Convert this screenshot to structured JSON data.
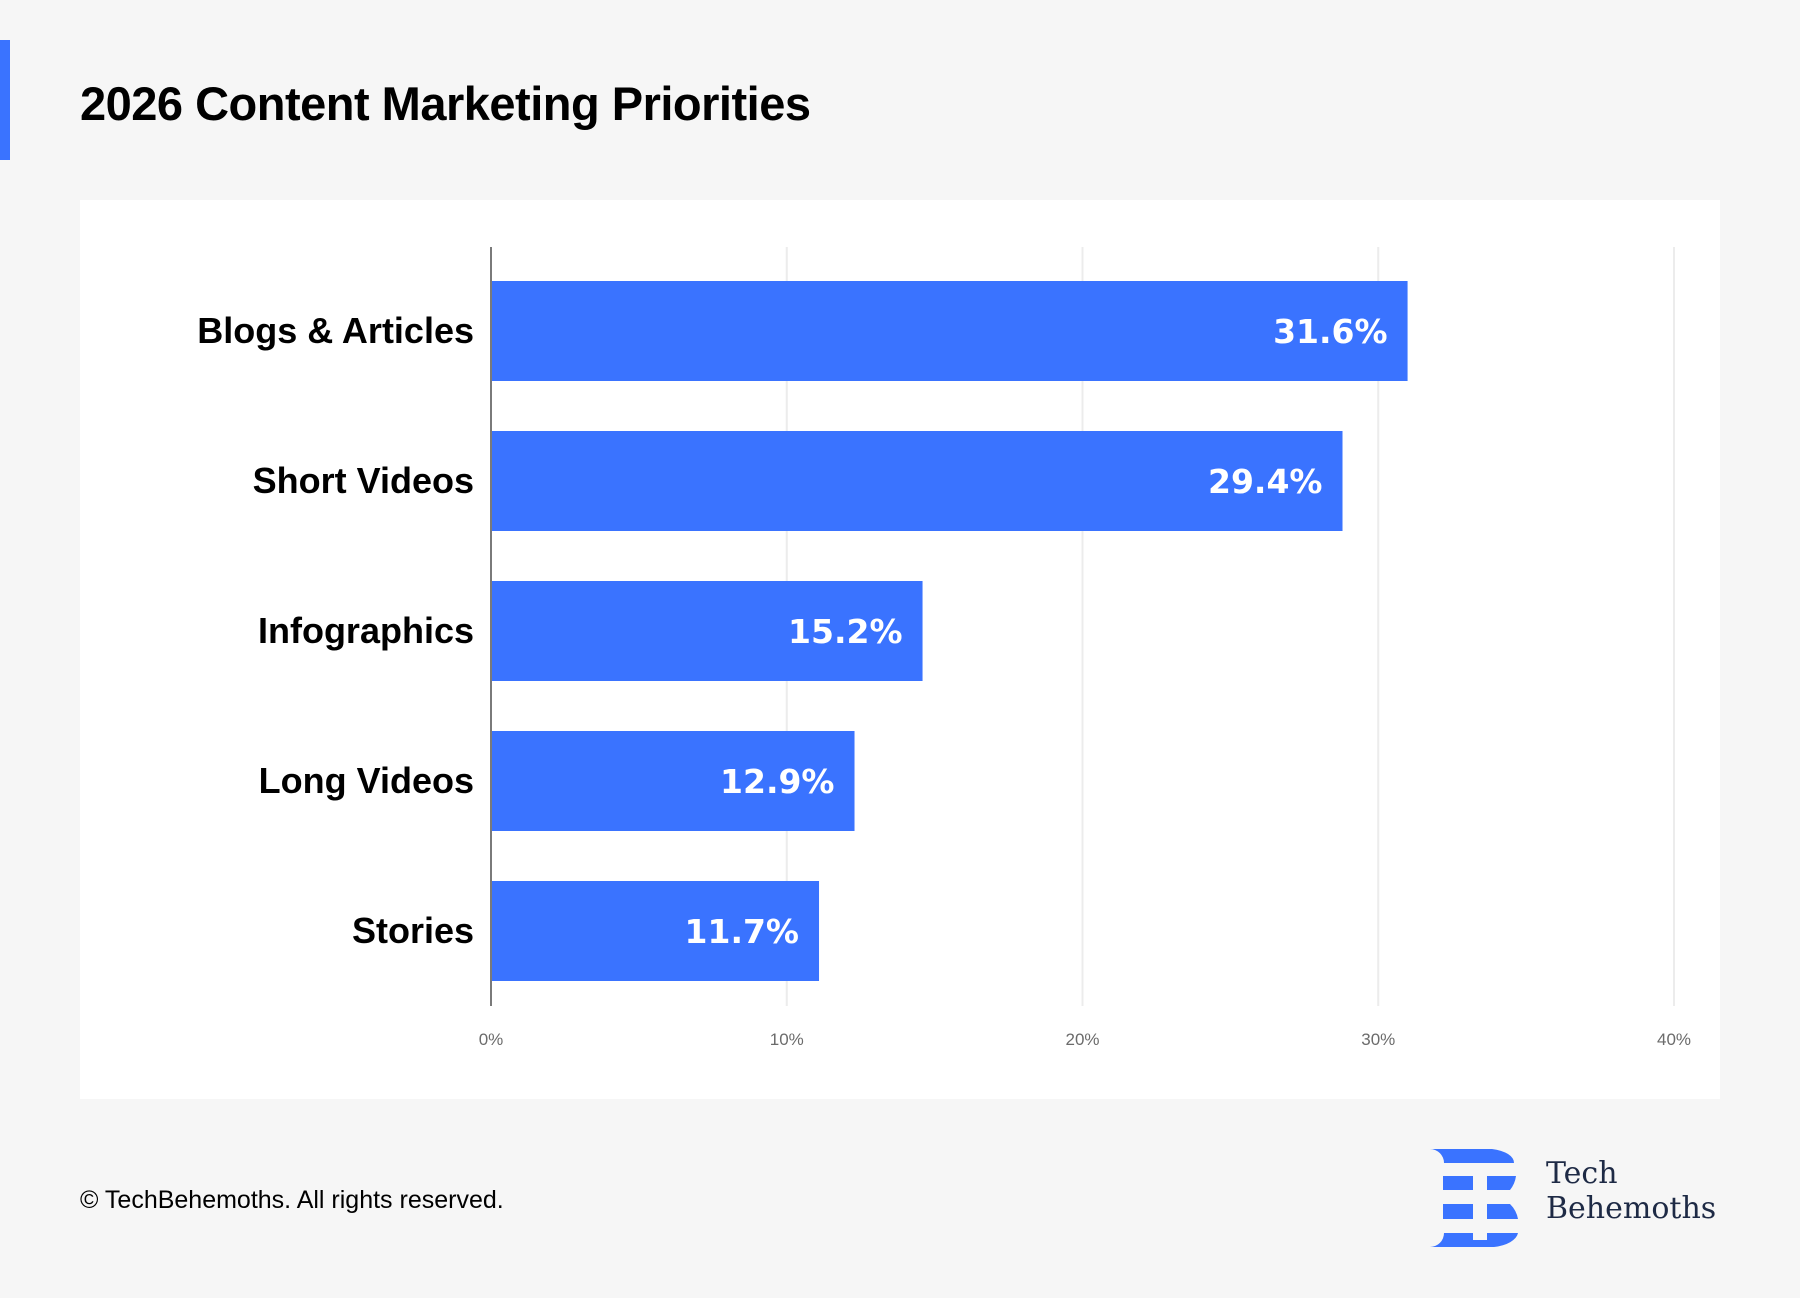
{
  "header": {
    "title": "2026 Content Marketing Priorities"
  },
  "colors": {
    "accent": "#3a73ff",
    "bar": "#3a73ff",
    "background": "#f6f6f6",
    "panel": "#ffffff",
    "gridline": "#ececec",
    "axis": "#7a7a7a"
  },
  "chart_data": {
    "type": "bar",
    "orientation": "horizontal",
    "title": "2026 Content Marketing Priorities",
    "categories": [
      "Blogs & Articles",
      "Short Videos",
      "Infographics",
      "Long Videos",
      "Stories"
    ],
    "values": [
      31.6,
      29.4,
      15.2,
      12.9,
      11.7
    ],
    "value_labels": [
      "31.6%",
      "29.4%",
      "15.2%",
      "12.9%",
      "11.7%"
    ],
    "xlabel": "",
    "ylabel": "",
    "xlim": [
      0,
      40
    ],
    "x_ticks": [
      0,
      10,
      20,
      30,
      40
    ],
    "x_tick_labels": [
      "0%",
      "10%",
      "20%",
      "30%",
      "40%"
    ],
    "grid": true,
    "legend": "none"
  },
  "footer": {
    "copyright": "© TechBehemoths. All rights reserved."
  },
  "logo": {
    "icon": "techbehemoths-b-logo",
    "line1": "Tech",
    "line2": "Behemoths"
  }
}
